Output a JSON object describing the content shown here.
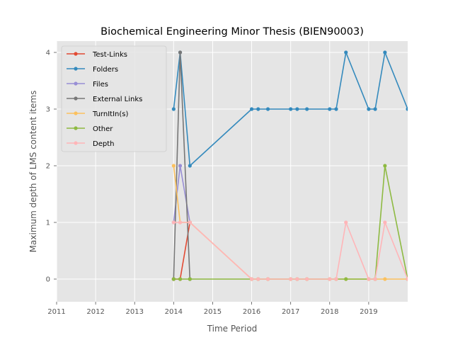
{
  "chart_data": {
    "type": "line",
    "title": "Biochemical Engineering Minor Thesis (BIEN90003)",
    "xlabel": "Time Period",
    "ylabel": "Maximum depth of LMS content items",
    "xlim": [
      2011,
      2020
    ],
    "ylim": [
      -0.4,
      4.2
    ],
    "x_ticks": [
      "2011",
      "2012",
      "2013",
      "2014",
      "2015",
      "2016",
      "2017",
      "2018",
      "2019"
    ],
    "y_ticks": [
      "0",
      "1",
      "2",
      "3",
      "4"
    ],
    "grid": true,
    "legend_position": "top-left",
    "background": "#e5e5e5",
    "series": [
      {
        "name": "Test-Links",
        "color": "#e24a33",
        "x": [
          "2014-01",
          "2014-03",
          "2014-06"
        ],
        "y": [
          0,
          0,
          1
        ]
      },
      {
        "name": "Folders",
        "color": "#348abd",
        "x": [
          "2014-01",
          "2014-03",
          "2014-06",
          "2016-01",
          "2016-03",
          "2016-06",
          "2017-01",
          "2017-03",
          "2017-06",
          "2018-01",
          "2018-03",
          "2018-06",
          "2019-01",
          "2019-03",
          "2019-06",
          "2020-01"
        ],
        "y": [
          3,
          4,
          2,
          3,
          3,
          3,
          3,
          3,
          3,
          3,
          3,
          4,
          3,
          3,
          4,
          3
        ]
      },
      {
        "name": "Files",
        "color": "#988ed5",
        "x": [
          "2014-01",
          "2014-03",
          "2014-06"
        ],
        "y": [
          1,
          2,
          1
        ]
      },
      {
        "name": "External Links",
        "color": "#777777",
        "x": [
          "2014-01",
          "2014-03",
          "2014-06"
        ],
        "y": [
          0,
          4,
          0
        ]
      },
      {
        "name": "TurnItIn(s)",
        "color": "#fbc15e",
        "x": [
          "2014-01",
          "2014-03",
          "2014-06",
          "2016-01",
          "2016-03",
          "2016-06",
          "2017-01",
          "2017-03",
          "2017-06",
          "2018-01",
          "2018-03",
          "2018-06",
          "2019-01",
          "2019-03",
          "2019-06",
          "2020-01"
        ],
        "y": [
          2,
          1,
          1,
          0,
          0,
          0,
          0,
          0,
          0,
          0,
          0,
          0,
          0,
          0,
          0,
          0
        ]
      },
      {
        "name": "Other",
        "color": "#8eba42",
        "x": [
          "2014-01",
          "2014-03",
          "2014-06",
          "2016-01",
          "2016-03",
          "2016-06",
          "2017-01",
          "2017-03",
          "2017-06",
          "2018-01",
          "2018-03",
          "2018-06",
          "2019-01",
          "2019-03",
          "2019-06",
          "2020-01"
        ],
        "y": [
          0,
          0,
          0,
          0,
          0,
          0,
          0,
          0,
          0,
          0,
          0,
          0,
          0,
          0,
          2,
          0
        ]
      },
      {
        "name": "Depth",
        "color": "#ffb5b8",
        "x": [
          "2014-01",
          "2014-03",
          "2014-06",
          "2016-01",
          "2016-03",
          "2016-06",
          "2017-01",
          "2017-03",
          "2017-06",
          "2018-01",
          "2018-03",
          "2018-06",
          "2019-01",
          "2019-03",
          "2019-06",
          "2020-01"
        ],
        "y": [
          1,
          1,
          1,
          0,
          0,
          0,
          0,
          0,
          0,
          0,
          0,
          1,
          0,
          0,
          1,
          0
        ]
      }
    ]
  }
}
